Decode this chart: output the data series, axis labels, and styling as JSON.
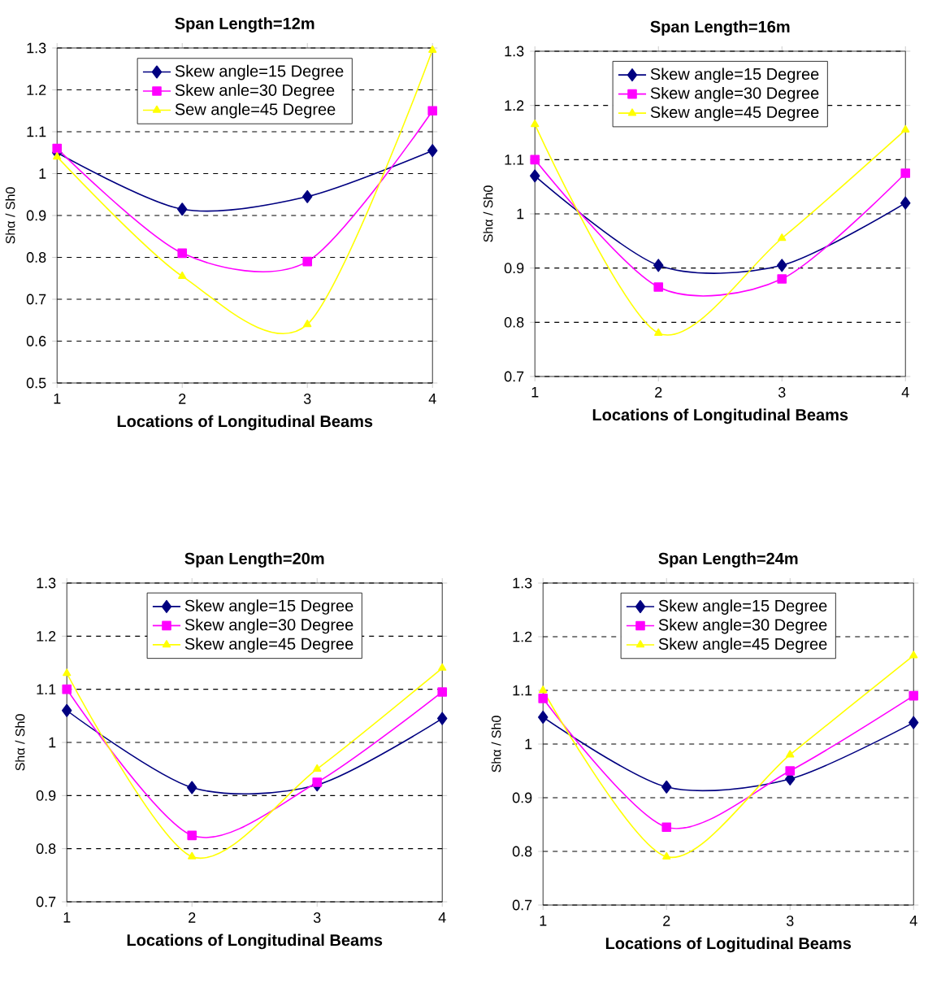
{
  "chart_data": [
    {
      "type": "line",
      "title": "Span Length=12m",
      "xlabel": "Locations of Longitudinal Beams",
      "ylabel": "Shα / Sh0",
      "x": [
        1,
        2,
        3,
        4
      ],
      "xlim": [
        1,
        4
      ],
      "xticks": [
        1,
        2,
        3,
        4
      ],
      "ylim": [
        0.5,
        1.3
      ],
      "yticks": [
        0.5,
        0.6,
        0.7,
        0.8,
        0.9,
        1,
        1.1,
        1.2,
        1.3
      ],
      "grid": "y",
      "legend": "top",
      "series": [
        {
          "name": "Skew angle=15 Degree",
          "color": "#000080",
          "marker": "diamond",
          "values": [
            1.05,
            0.915,
            0.945,
            1.055
          ]
        },
        {
          "name": "Skew anle=30 Degree",
          "color": "#ff00ff",
          "marker": "square",
          "values": [
            1.06,
            0.81,
            0.79,
            1.15
          ]
        },
        {
          "name": "Sew angle=45 Degree",
          "color": "#ffff00",
          "marker": "triangle",
          "values": [
            1.04,
            0.755,
            0.64,
            1.295
          ]
        }
      ]
    },
    {
      "type": "line",
      "title": "Span Length=16m",
      "xlabel": "Locations of Longitudinal Beams",
      "ylabel": "Shα / Sh0",
      "x": [
        1,
        2,
        3,
        4
      ],
      "xlim": [
        1,
        4
      ],
      "xticks": [
        1,
        2,
        3,
        4
      ],
      "ylim": [
        0.7,
        1.3
      ],
      "yticks": [
        0.7,
        0.8,
        0.9,
        1,
        1.1,
        1.2,
        1.3
      ],
      "grid": "y",
      "legend": "top",
      "series": [
        {
          "name": "Skew angle=15 Degree",
          "color": "#000080",
          "marker": "diamond",
          "values": [
            1.07,
            0.905,
            0.905,
            1.02
          ]
        },
        {
          "name": "Skew angle=30 Degree",
          "color": "#ff00ff",
          "marker": "square",
          "values": [
            1.1,
            0.865,
            0.88,
            1.075
          ]
        },
        {
          "name": "Skew angle=45 Degree",
          "color": "#ffff00",
          "marker": "triangle",
          "values": [
            1.165,
            0.78,
            0.955,
            1.155
          ]
        }
      ]
    },
    {
      "type": "line",
      "title": "Span Length=20m",
      "xlabel": "Locations of Longitudinal Beams",
      "ylabel": "Shα / Sh0",
      "x": [
        1,
        2,
        3,
        4
      ],
      "xlim": [
        1,
        4
      ],
      "xticks": [
        1,
        2,
        3,
        4
      ],
      "ylim": [
        0.7,
        1.3
      ],
      "yticks": [
        0.7,
        0.8,
        0.9,
        1,
        1.1,
        1.2,
        1.3
      ],
      "grid": "y",
      "legend": "top",
      "series": [
        {
          "name": "Skew angle=15 Degree",
          "color": "#000080",
          "marker": "diamond",
          "values": [
            1.06,
            0.915,
            0.92,
            1.045
          ]
        },
        {
          "name": "Skew angle=30 Degree",
          "color": "#ff00ff",
          "marker": "square",
          "values": [
            1.1,
            0.825,
            0.925,
            1.095
          ]
        },
        {
          "name": "Skew angle=45 Degree",
          "color": "#ffff00",
          "marker": "triangle",
          "values": [
            1.13,
            0.785,
            0.95,
            1.14
          ]
        }
      ]
    },
    {
      "type": "line",
      "title": "Span Length=24m",
      "xlabel": "Locations of Logitudinal Beams",
      "ylabel": "Shα / Sh0",
      "x": [
        1,
        2,
        3,
        4
      ],
      "xlim": [
        1,
        4
      ],
      "xticks": [
        1,
        2,
        3,
        4
      ],
      "ylim": [
        0.7,
        1.3
      ],
      "yticks": [
        0.7,
        0.8,
        0.9,
        1,
        1.1,
        1.2,
        1.3
      ],
      "grid": "y",
      "legend": "top",
      "series": [
        {
          "name": "Skew angle=15 Degree",
          "color": "#000080",
          "marker": "diamond",
          "values": [
            1.05,
            0.92,
            0.935,
            1.04
          ]
        },
        {
          "name": "Skew angle=30 Degree",
          "color": "#ff00ff",
          "marker": "square",
          "values": [
            1.085,
            0.845,
            0.95,
            1.09
          ]
        },
        {
          "name": "Skew angle=45 Degree",
          "color": "#ffff00",
          "marker": "triangle",
          "values": [
            1.1,
            0.79,
            0.98,
            1.165
          ]
        }
      ]
    }
  ]
}
